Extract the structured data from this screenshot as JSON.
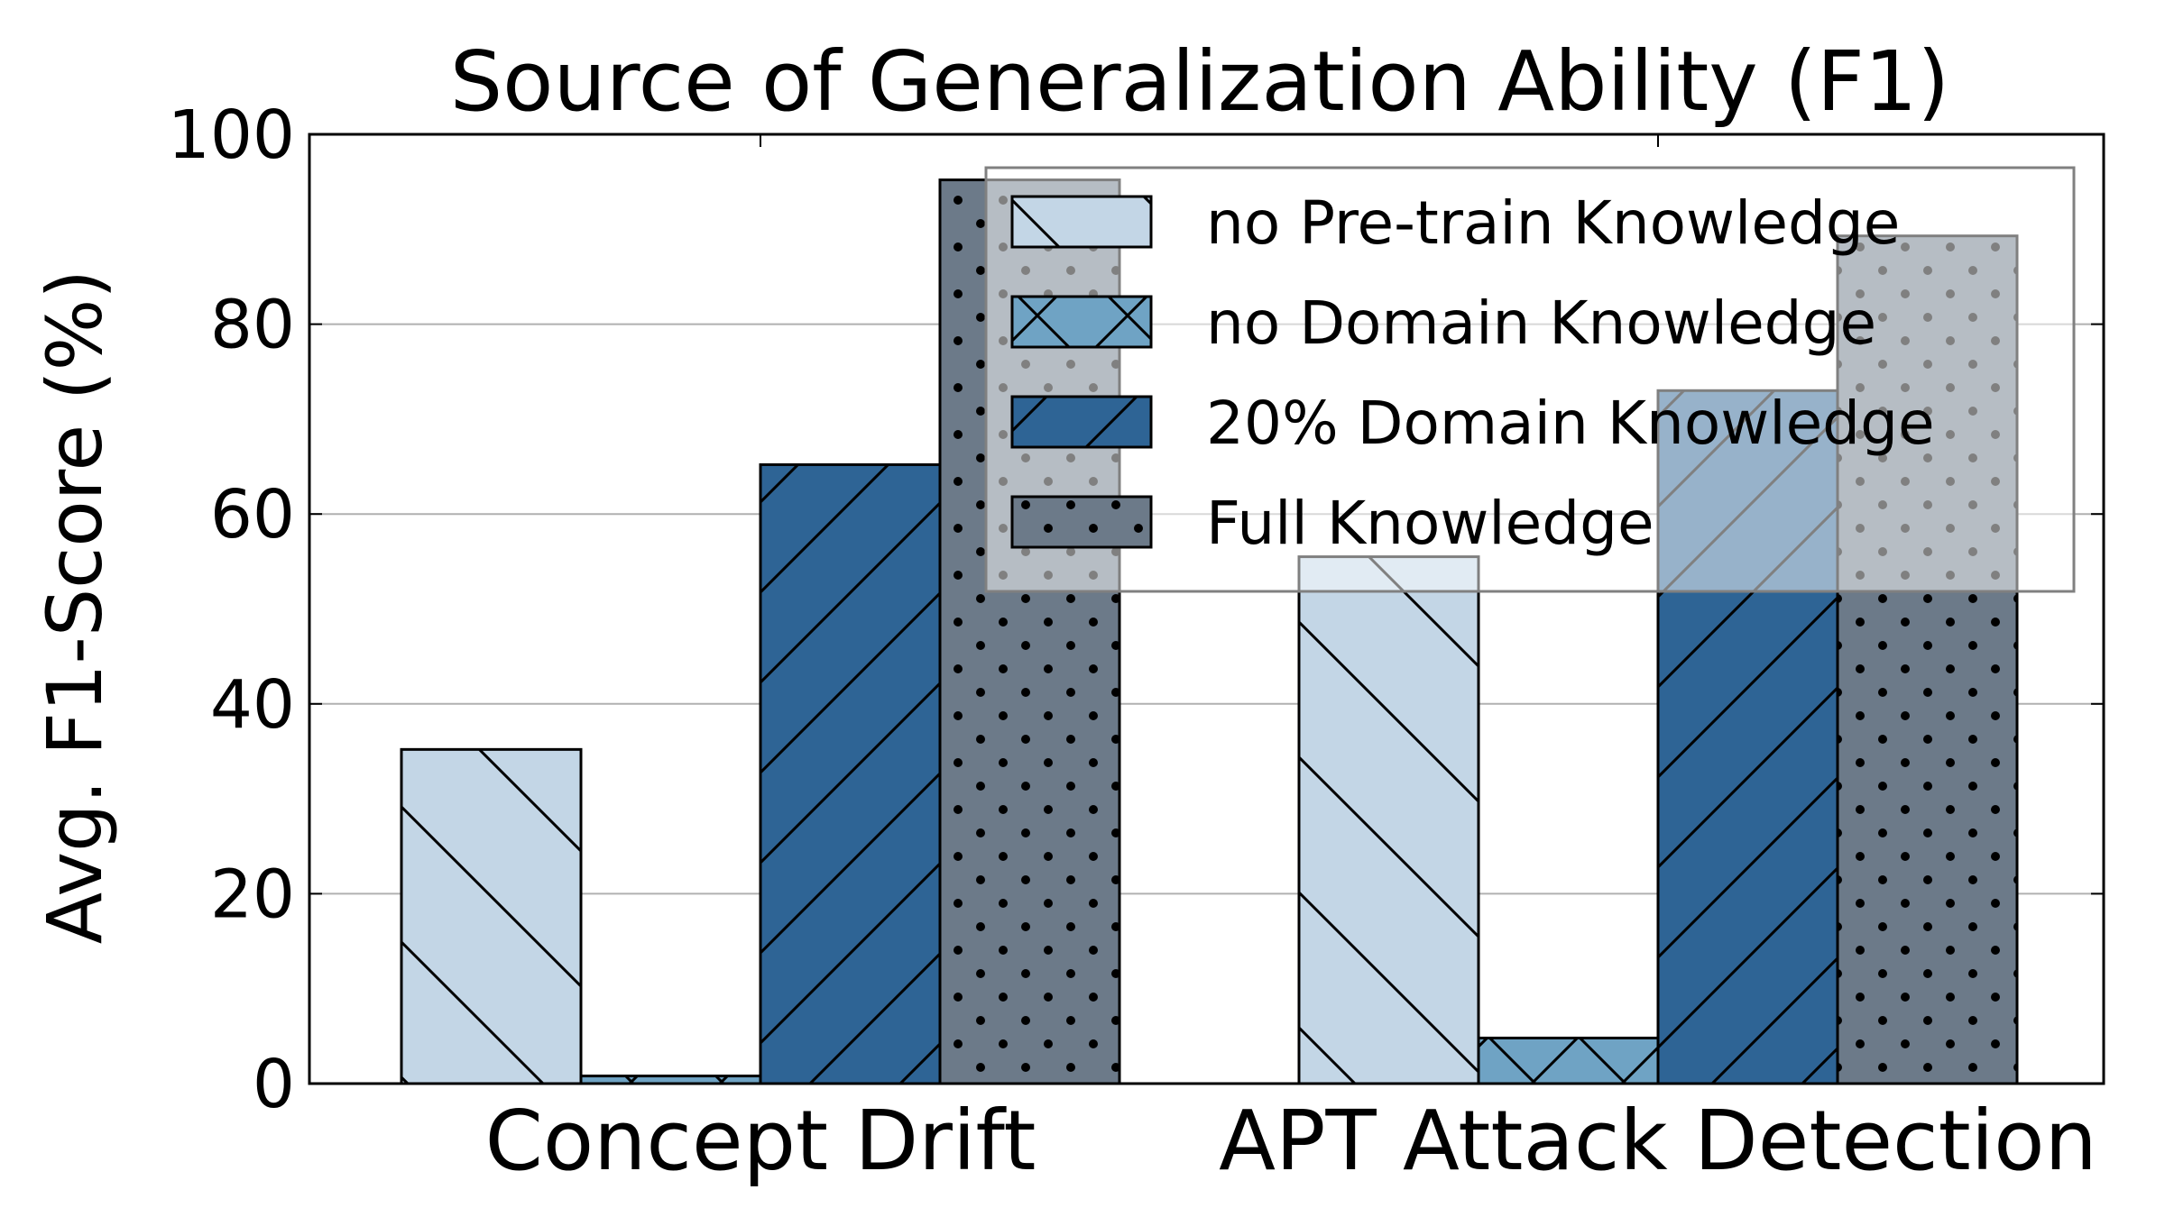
{
  "chart_data": {
    "type": "bar",
    "title": "Source of Generalization Ability (F1)",
    "xlabel": "",
    "ylabel": "Avg. F1-Score (%)",
    "ylim": [
      0,
      100
    ],
    "yticks": [
      "0",
      "20",
      "40",
      "60",
      "80",
      "100"
    ],
    "categories": [
      "Concept Drift",
      "APT Attack Detection"
    ],
    "grid": "horizontal",
    "legend_position": "top-right",
    "series": [
      {
        "name": "no Pre-train Knowledge",
        "values": [
          35.2,
          55.5
        ],
        "color": "#c3d6e6",
        "hatch": "backslash"
      },
      {
        "name": "no Domain Knowledge",
        "values": [
          0.8,
          4.8
        ],
        "color": "#6fa3c4",
        "hatch": "cross"
      },
      {
        "name": "20% Domain Knowledge",
        "values": [
          65.2,
          73.0
        ],
        "color": "#2e6495",
        "hatch": "slash"
      },
      {
        "name": "Full Knowledge",
        "values": [
          95.2,
          89.3
        ],
        "color": "#6c7a89",
        "hatch": "dots"
      }
    ]
  }
}
